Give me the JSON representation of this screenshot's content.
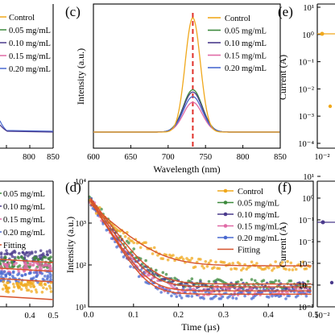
{
  "panels": {
    "c": "(c)",
    "d": "(d)",
    "e": "(e)",
    "f": "(f)"
  },
  "colors": {
    "Control": "#f0a81c",
    "0.05 mg/mL": "#3d8a3d",
    "0.10 mg/mL": "#4a3a8c",
    "0.15 mg/mL": "#e06aa6",
    "0.20 mg/mL": "#4a6ad0",
    "Fitting": "#d6532c",
    "dashline": "#e0302a"
  },
  "chart_data": [
    {
      "panel": "a (partial)",
      "type": "line",
      "legend": [
        "Control",
        "0.05 mg/mL",
        "0.10 mg/mL",
        "0.15 mg/mL",
        "0.20 mg/mL"
      ],
      "x_ticks": [
        "800",
        "850"
      ]
    },
    {
      "panel": "c",
      "type": "line",
      "xlabel": "Wavelength (nm)",
      "ylabel": "Intensity (a.u.)",
      "xlim": [
        600,
        850
      ],
      "x_ticks": [
        "600",
        "650",
        "700",
        "750",
        "800",
        "850"
      ],
      "peak_wavelength": 733,
      "series": [
        {
          "name": "Control",
          "peak": 1.0,
          "fwhm": 24
        },
        {
          "name": "0.05 mg/mL",
          "peak": 0.37,
          "fwhm": 30
        },
        {
          "name": "0.10 mg/mL",
          "peak": 0.35,
          "fwhm": 30
        },
        {
          "name": "0.15 mg/mL",
          "peak": 0.26,
          "fwhm": 30
        },
        {
          "name": "0.20 mg/mL",
          "peak": 0.31,
          "fwhm": 30
        }
      ]
    },
    {
      "panel": "e",
      "type": "scatter",
      "ylabel": "Current (A)",
      "yscale": "log",
      "y_ticks": [
        "10¹",
        "10⁰",
        "10⁻¹",
        "10⁻²",
        "10⁻³",
        "10⁻⁴"
      ],
      "x_ticks": [
        "10⁻²"
      ]
    },
    {
      "panel": "b (partial)",
      "type": "scatter",
      "legend": [
        "0.05 mg/mL",
        "0.10 mg/mL",
        "0.15 mg/mL",
        "0.20 mg/mL",
        "Fitting"
      ],
      "x_ticks": [
        "0.4",
        "0.5"
      ]
    },
    {
      "panel": "d",
      "type": "scatter",
      "xlabel": "Time (µs)",
      "ylabel": "Intensity (a.u.)",
      "yscale": "log",
      "xlim": [
        0,
        0.5
      ],
      "ylim": [
        10,
        10000
      ],
      "x_ticks": [
        "0.0",
        "0.1",
        "0.2",
        "0.3",
        "0.4",
        "0.5"
      ],
      "y_ticks": [
        "10⁴",
        "10³",
        "10²",
        "10¹"
      ],
      "series": [
        {
          "name": "Control",
          "amp": 3000,
          "tau": 0.045,
          "baseline": 95
        },
        {
          "name": "0.05 mg/mL",
          "amp": 4500,
          "tau": 0.03,
          "baseline": 35
        },
        {
          "name": "0.10 mg/mL",
          "amp": 4200,
          "tau": 0.028,
          "baseline": 30
        },
        {
          "name": "0.15 mg/mL",
          "amp": 4000,
          "tau": 0.026,
          "baseline": 24
        },
        {
          "name": "0.20 mg/mL",
          "amp": 4000,
          "tau": 0.025,
          "baseline": 20
        },
        {
          "name": "Fitting"
        }
      ]
    },
    {
      "panel": "f",
      "type": "scatter",
      "ylabel": "Current (A)",
      "yscale": "log",
      "y_ticks": [
        "10¹",
        "10⁰",
        "10⁻¹",
        "10⁻²",
        "10⁻³",
        "10⁻⁴",
        "10⁻⁵"
      ],
      "x_ticks": [
        "10⁻²"
      ]
    }
  ]
}
